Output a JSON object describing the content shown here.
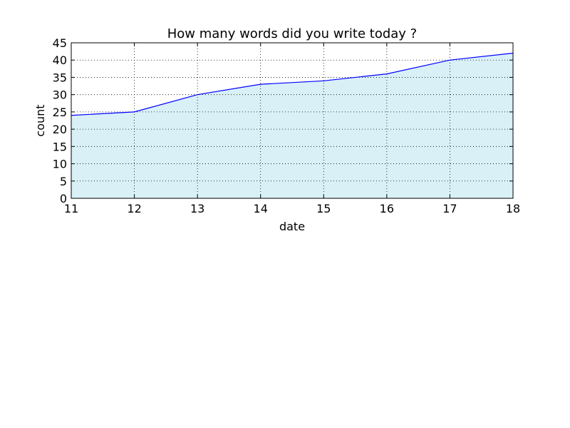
{
  "chart_data": {
    "type": "area",
    "title": "How many words did you write today ?",
    "xlabel": "date",
    "ylabel": "count",
    "x": [
      11,
      12,
      13,
      14,
      15,
      16,
      17,
      18
    ],
    "y": [
      24,
      25,
      30,
      33,
      34,
      36,
      40,
      42
    ],
    "xlim": [
      11,
      18
    ],
    "ylim": [
      0,
      45
    ],
    "xticks": [
      11,
      12,
      13,
      14,
      15,
      16,
      17,
      18
    ],
    "yticks": [
      0,
      5,
      10,
      15,
      20,
      25,
      30,
      35,
      40,
      45
    ],
    "grid": true,
    "line_color": "#0000ff",
    "fill_color": "#d9f0f7"
  }
}
